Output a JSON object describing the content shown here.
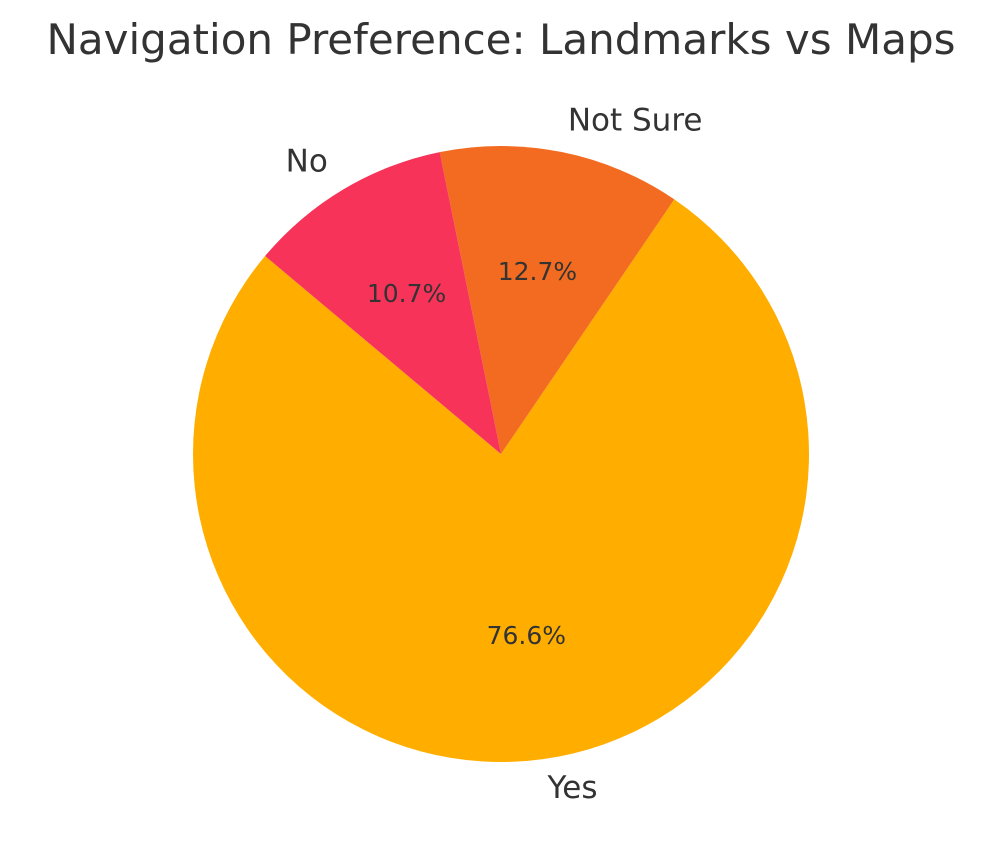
{
  "chart_data": {
    "type": "pie",
    "title": "Navigation Preference: Landmarks vs Maps",
    "slices": [
      {
        "label": "Yes",
        "value": 76.6,
        "pct_label": "76.6%",
        "color": "#FFAE00"
      },
      {
        "label": "Not Sure",
        "value": 12.7,
        "pct_label": "12.7%",
        "color": "#F26B21"
      },
      {
        "label": "No",
        "value": 10.7,
        "pct_label": "10.7%",
        "color": "#F7335A"
      }
    ],
    "start_angle_deg": 140,
    "direction": "counterclockwise",
    "legend": "none"
  }
}
